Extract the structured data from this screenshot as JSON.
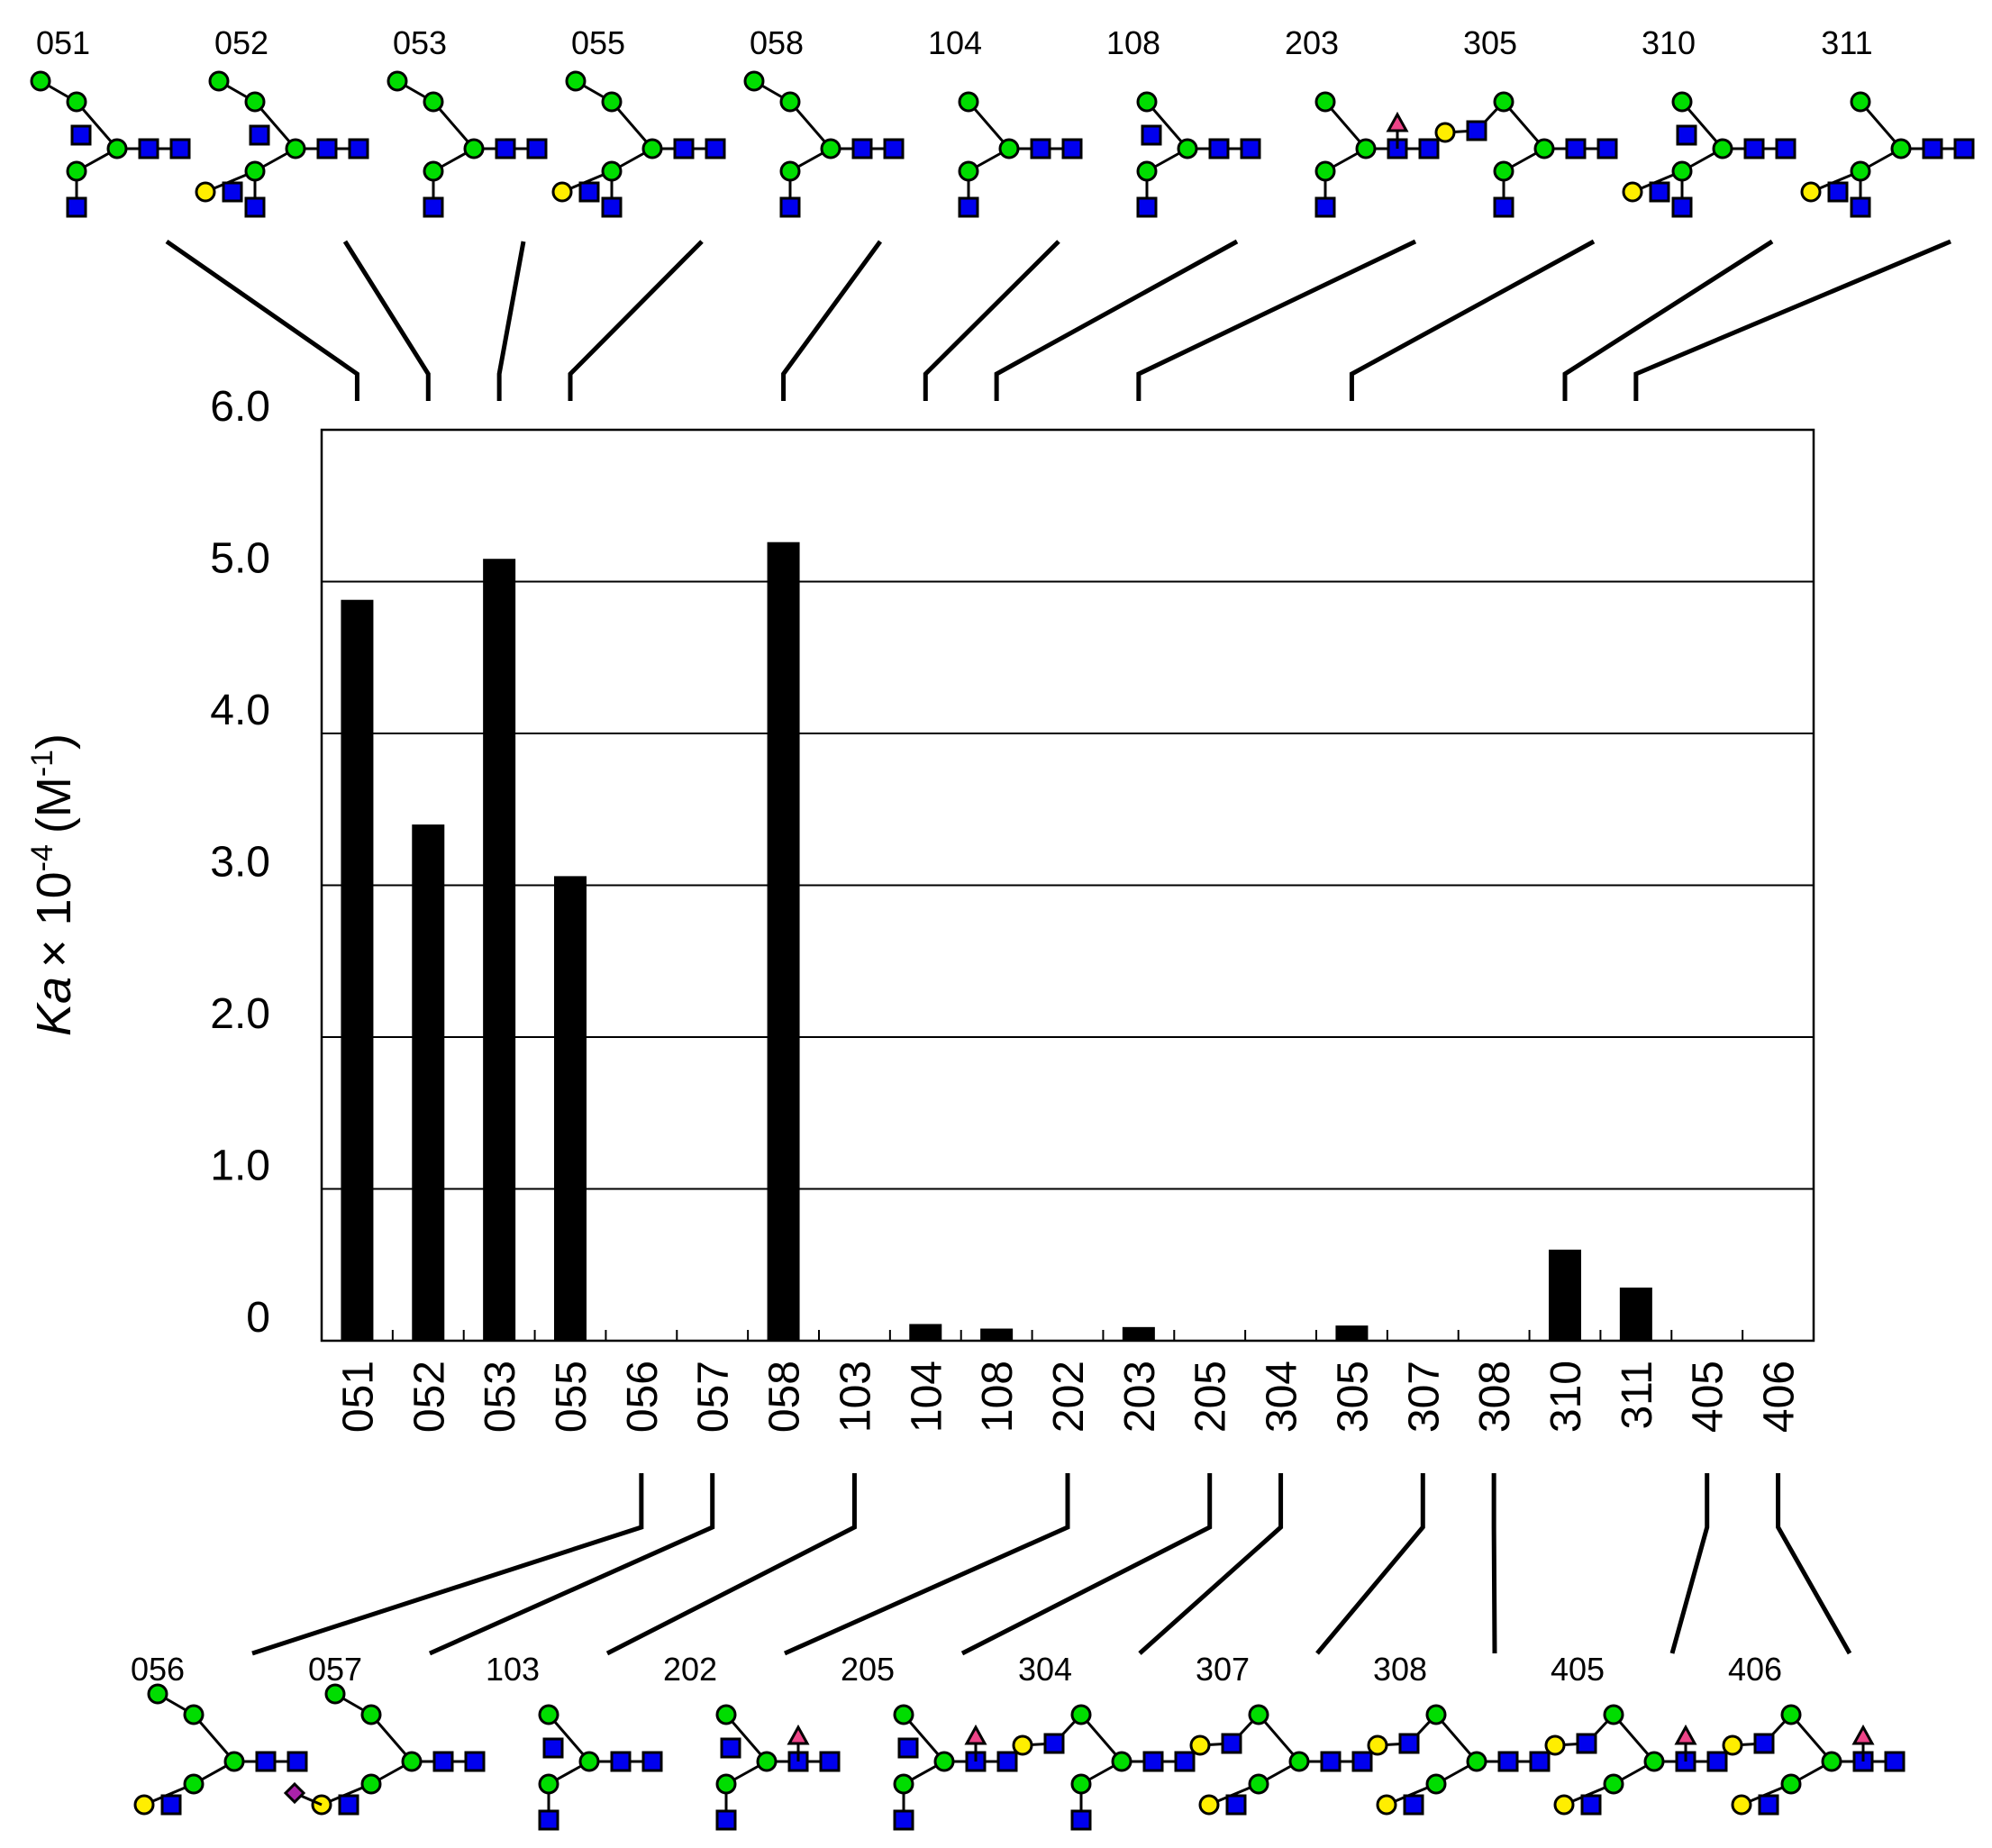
{
  "chart_data": {
    "type": "bar",
    "ylabel": {
      "main": "Ka",
      "times": "× 10",
      "exp": "-4",
      "unit": "(M",
      "unit_exp": "-1",
      "close": ")"
    },
    "ylim": [
      0,
      6
    ],
    "yticks": [
      {
        "value": 0,
        "label": "0"
      },
      {
        "value": 1,
        "label": "1.0"
      },
      {
        "value": 2,
        "label": "2.0"
      },
      {
        "value": 3,
        "label": "3.0"
      },
      {
        "value": 4,
        "label": "4.0"
      },
      {
        "value": 5,
        "label": "5.0"
      },
      {
        "value": 6,
        "label": "6.0"
      }
    ],
    "grid": "horizontal",
    "categories": [
      "051",
      "052",
      "053",
      "055",
      "056",
      "057",
      "058",
      "103",
      "104",
      "108",
      "202",
      "203",
      "205",
      "304",
      "305",
      "307",
      "308",
      "310",
      "311",
      "405",
      "406"
    ],
    "values": [
      4.88,
      3.4,
      5.15,
      3.06,
      0,
      0,
      5.26,
      0,
      0.11,
      0.08,
      0,
      0.09,
      0,
      0,
      0.1,
      0,
      0,
      0.6,
      0.35,
      0,
      0
    ],
    "bar_color": "#000000"
  },
  "glycans_top": [
    {
      "id": "051",
      "cat": "051"
    },
    {
      "id": "052",
      "cat": "052"
    },
    {
      "id": "053",
      "cat": "053"
    },
    {
      "id": "055",
      "cat": "055"
    },
    {
      "id": "058",
      "cat": "058"
    },
    {
      "id": "104",
      "cat": "104"
    },
    {
      "id": "108",
      "cat": "108"
    },
    {
      "id": "203",
      "cat": "203"
    },
    {
      "id": "305",
      "cat": "305"
    },
    {
      "id": "310",
      "cat": "310"
    },
    {
      "id": "311",
      "cat": "311"
    }
  ],
  "glycans_bottom": [
    {
      "id": "056",
      "cat": "056"
    },
    {
      "id": "057",
      "cat": "057"
    },
    {
      "id": "103",
      "cat": "103"
    },
    {
      "id": "202",
      "cat": "202"
    },
    {
      "id": "205",
      "cat": "205"
    },
    {
      "id": "304",
      "cat": "304"
    },
    {
      "id": "307",
      "cat": "307"
    },
    {
      "id": "308",
      "cat": "308"
    },
    {
      "id": "405",
      "cat": "405"
    },
    {
      "id": "406",
      "cat": "406"
    }
  ],
  "symbol_colors": {
    "glcnac_square": "#0000ee",
    "mannose_circle": "#00dd00",
    "galactose_circle": "#ffee00",
    "fucose_triangle": "#ee4488",
    "sialic_diamond": "#aa22aa"
  }
}
